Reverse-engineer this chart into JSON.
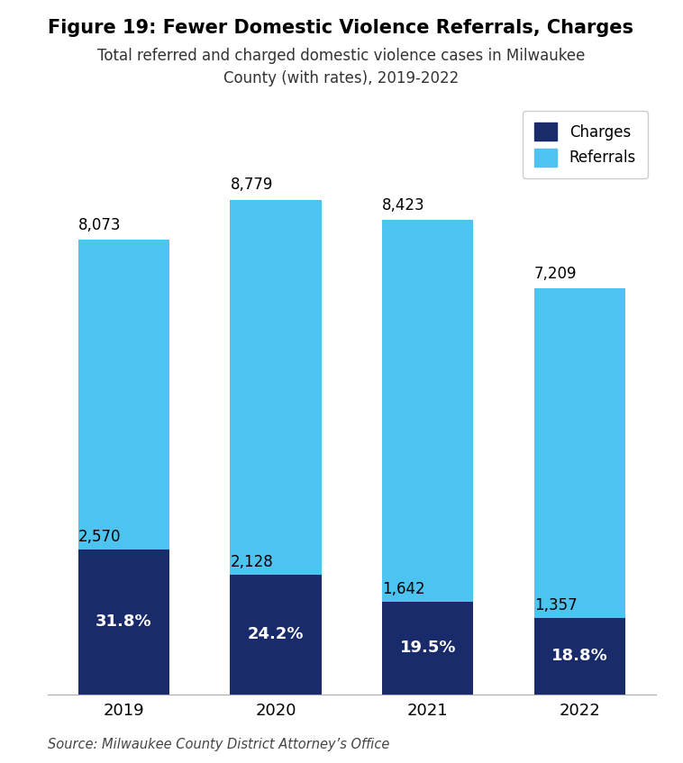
{
  "years": [
    "2019",
    "2020",
    "2021",
    "2022"
  ],
  "charges": [
    2570,
    2128,
    1642,
    1357
  ],
  "referrals": [
    8073,
    8779,
    8423,
    7209
  ],
  "charge_pcts": [
    "31.8%",
    "24.2%",
    "19.5%",
    "18.8%"
  ],
  "charge_color": "#1a2b6b",
  "referral_color": "#4dc3f0",
  "title_line1": "Figure 19: Fewer Domestic Violence Referrals, Charges",
  "subtitle": "Total referred and charged domestic violence cases in Milwaukee\nCounty (with rates), 2019-2022",
  "source": "Source: Milwaukee County District Attorney’s Office",
  "bg_color": "#ffffff",
  "bar_width": 0.6,
  "ylim": [
    0,
    10500
  ]
}
